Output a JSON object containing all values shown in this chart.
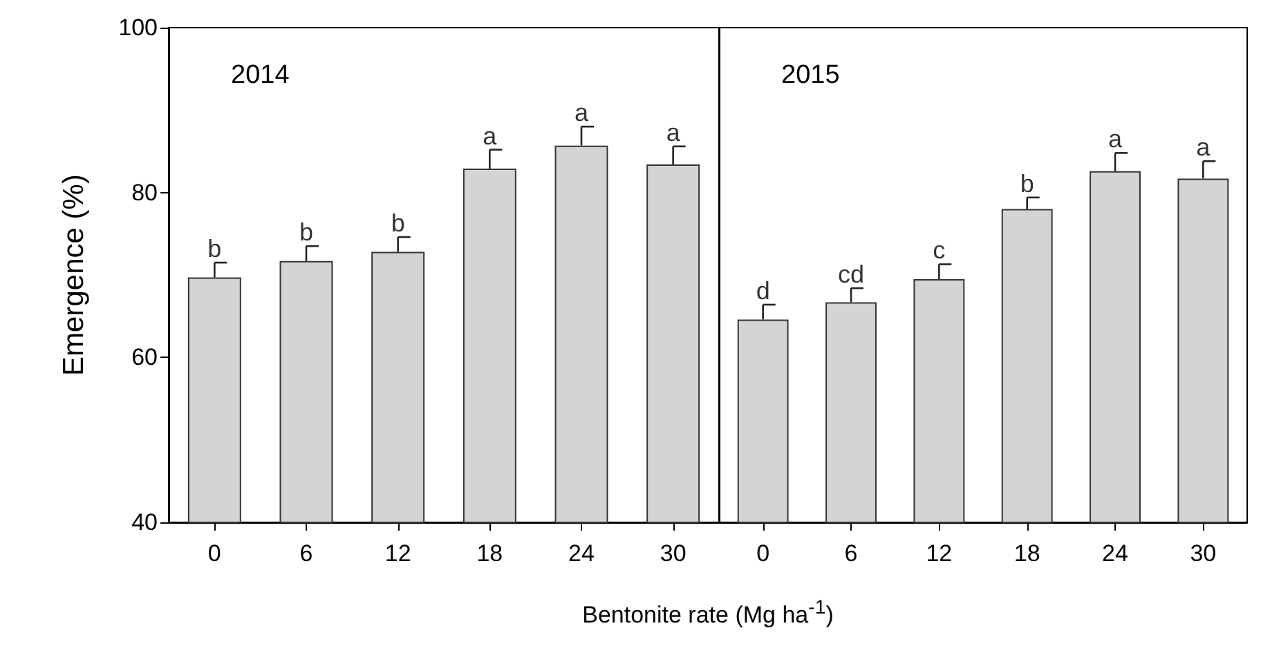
{
  "chart_data": [
    {
      "type": "bar",
      "title": "2014",
      "ylabel": "Emergence (%)",
      "xlabel": "Bentonite rate (Mg ha$^{-1}$)",
      "categories": [
        "0",
        "6",
        "12",
        "18",
        "24",
        "30"
      ],
      "values": [
        69.7,
        71.7,
        72.8,
        82.9,
        85.7,
        83.4
      ],
      "color": "#d3d4d3",
      "errors": [
        [
          69.7,
          71.5
        ],
        [
          71.7,
          73.5
        ],
        [
          72.8,
          74.6
        ],
        [
          82.9,
          85.2
        ],
        [
          85.7,
          88.0
        ],
        [
          83.4,
          85.6
        ]
      ],
      "ylim": [
        40,
        100
      ],
      "yticks": [
        40,
        60,
        80,
        100
      ],
      "grid": false,
      "annotations": [
        {
          "text": "b",
          "x": "0",
          "y": 71.5
        },
        {
          "text": "b",
          "x": "6",
          "y": 73.5
        },
        {
          "text": "b",
          "x": "12",
          "y": 74.6
        },
        {
          "text": "a",
          "x": "18",
          "y": 85.2
        },
        {
          "text": "a",
          "x": "24",
          "y": 88.0
        },
        {
          "text": "a",
          "x": "30",
          "y": 85.6
        }
      ]
    },
    {
      "type": "bar",
      "title": "2015",
      "categories": [
        "0",
        "6",
        "12",
        "18",
        "24",
        "30"
      ],
      "values": [
        64.6,
        66.7,
        69.5,
        78.0,
        82.6,
        81.7
      ],
      "color": "#d3d4d3",
      "errors": [
        [
          64.6,
          66.4
        ],
        [
          66.7,
          68.4
        ],
        [
          69.5,
          71.3
        ],
        [
          78.0,
          79.4
        ],
        [
          82.6,
          84.8
        ],
        [
          81.7,
          83.8
        ]
      ],
      "ylim": [
        40,
        100
      ],
      "yticks": [
        40,
        60,
        80,
        100
      ],
      "grid": false,
      "tick_labels": "x",
      "annotations": [
        {
          "text": "d",
          "x": "0",
          "y": 66.4
        },
        {
          "text": "cd",
          "x": "6",
          "y": 68.4
        },
        {
          "text": "c",
          "x": "12",
          "y": 71.3
        },
        {
          "text": "b",
          "x": "18",
          "y": 79.4
        },
        {
          "text": "a",
          "x": "24",
          "y": 84.8
        },
        {
          "text": "a",
          "x": "30",
          "y": 83.8
        }
      ]
    }
  ]
}
